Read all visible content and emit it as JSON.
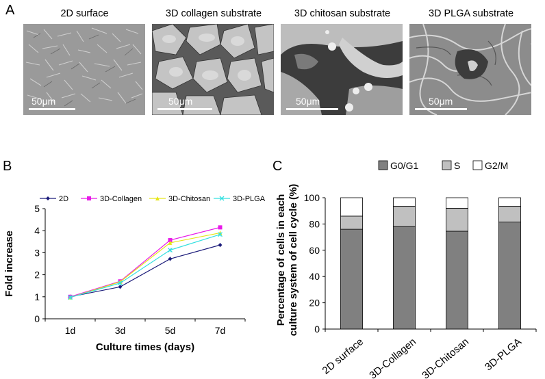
{
  "panel_a": {
    "letter": "A",
    "images": [
      {
        "title": "2D surface",
        "scale_label": "50μm"
      },
      {
        "title": "3D collagen substrate",
        "scale_label": "50μm"
      },
      {
        "title": "3D chitosan substrate",
        "scale_label": "50μm"
      },
      {
        "title": "3D PLGA substrate",
        "scale_label": "50μm"
      }
    ]
  },
  "panel_b": {
    "letter": "B"
  },
  "panel_c": {
    "letter": "C"
  },
  "chart_data": [
    {
      "type": "line",
      "title": "",
      "xlabel": "Culture times (days)",
      "ylabel": "Fold increase",
      "categories": [
        "1d",
        "3d",
        "5d",
        "7d"
      ],
      "ylim": [
        0,
        5
      ],
      "yticks": [
        0,
        1,
        2,
        3,
        4,
        5
      ],
      "grid": false,
      "legend_position": "top",
      "series": [
        {
          "name": "2D",
          "color": "#1c1c7a",
          "marker": "diamond",
          "values": [
            1.0,
            1.45,
            2.72,
            3.35
          ]
        },
        {
          "name": "3D-Collagen",
          "color": "#e81ae8",
          "marker": "square",
          "values": [
            1.0,
            1.7,
            3.57,
            4.15
          ]
        },
        {
          "name": "3D-Chitosan",
          "color": "#e6e619",
          "marker": "triangle",
          "values": [
            0.97,
            1.68,
            3.45,
            3.9
          ]
        },
        {
          "name": "3D-PLGA",
          "color": "#33e0e0",
          "marker": "x",
          "values": [
            0.97,
            1.62,
            3.12,
            3.83
          ]
        }
      ]
    },
    {
      "type": "bar",
      "stacked": true,
      "title": "",
      "xlabel": "",
      "ylabel": "Percentage of cells in each culture system of cell cycle (%)",
      "ylabel_lines": [
        "Percentage of cells in each",
        "culture system of cell cycle (%)"
      ],
      "categories": [
        "2D surface",
        "3D-Collagen",
        "3D-Chitosan",
        "3D-PLGA"
      ],
      "ylim": [
        0,
        100
      ],
      "yticks": [
        0,
        20,
        40,
        60,
        80,
        100
      ],
      "grid": false,
      "legend_position": "top",
      "series": [
        {
          "name": "G0/G1",
          "color": "#808080",
          "values": [
            76,
            78,
            74.5,
            81.5
          ]
        },
        {
          "name": "S",
          "color": "#c0c0c0",
          "values": [
            10,
            15.5,
            17.5,
            12
          ]
        },
        {
          "name": "G2/M",
          "color": "#ffffff",
          "values": [
            14,
            6.5,
            8,
            6.5
          ]
        }
      ]
    }
  ]
}
